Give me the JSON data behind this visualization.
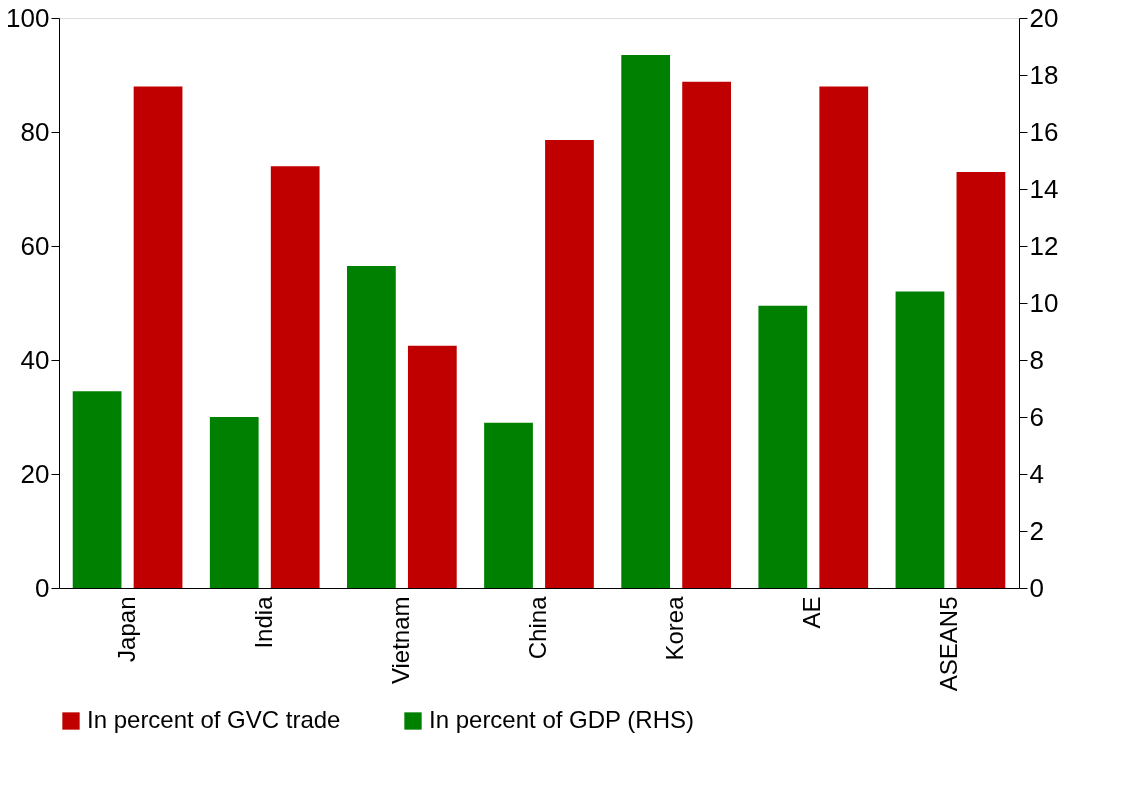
{
  "chart_data": {
    "type": "bar",
    "categories": [
      "Japan",
      "India",
      "Vietnam",
      "China",
      "Korea",
      "AE",
      "ASEAN5"
    ],
    "series": [
      {
        "name": "In percent of GVC trade",
        "color": "#c00000",
        "values": [
          88,
          74,
          42.5,
          78.6,
          88.8,
          88,
          73
        ]
      },
      {
        "name": "In percent of GDP (RHS)",
        "color": "#008000",
        "axis": "y2",
        "values": [
          6.9,
          6.0,
          11.3,
          5.8,
          18.7,
          9.9,
          10.4
        ]
      }
    ],
    "ylim": [
      0,
      100
    ],
    "yticks": [
      0,
      20,
      40,
      60,
      80,
      100
    ],
    "y2lim": [
      0,
      20
    ],
    "y2ticks": [
      0,
      2,
      4,
      6,
      8,
      10,
      12,
      14,
      16,
      18,
      20
    ],
    "grid": false,
    "legend": "bottom"
  }
}
